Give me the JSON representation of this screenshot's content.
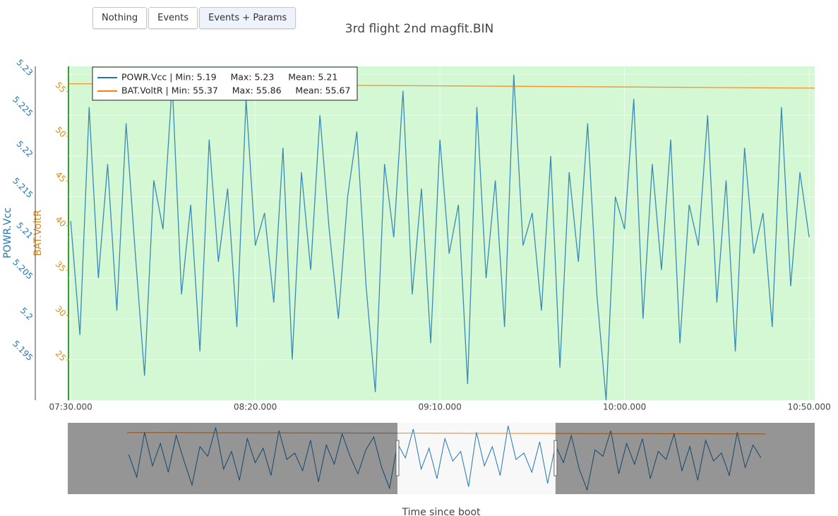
{
  "buttons": [
    "Nothing",
    "Events",
    "Events + Params"
  ],
  "chart_data": {
    "type": "line",
    "title": "3rd flight 2nd magfit.BIN",
    "x_label": "Time since boot",
    "y_label": "POWR.Vcc",
    "y2_label": "BAT.VoltR",
    "xlim": [
      449.4,
      651.5
    ],
    "xticks": [
      {
        "value": 450,
        "label": "07:30.000"
      },
      {
        "value": 500,
        "label": "08:20.000"
      },
      {
        "value": 550,
        "label": "09:10.000"
      },
      {
        "value": 600,
        "label": "10:00.000"
      },
      {
        "value": 650,
        "label": "10:50.000"
      }
    ],
    "ylim": [
      5.19,
      5.231
    ],
    "yticks": [
      5.195,
      5.2,
      5.205,
      5.21,
      5.215,
      5.22,
      5.225,
      5.23
    ],
    "y2lim": [
      20.5,
      57.8
    ],
    "y2ticks": [
      25,
      30,
      35,
      40,
      45,
      50,
      55
    ],
    "grid": true,
    "background": "#d3f8d3",
    "legend": "top-left",
    "x": [
      450,
      452.5,
      455,
      457.5,
      460,
      462.5,
      465,
      467.5,
      470,
      472.5,
      475,
      477.5,
      480,
      482.5,
      485,
      487.5,
      490,
      492.5,
      495,
      497.5,
      500,
      502.5,
      505,
      507.5,
      510,
      512.5,
      515,
      517.5,
      520,
      522.5,
      525,
      527.5,
      530,
      532.5,
      535,
      537.5,
      540,
      542.5,
      545,
      547.5,
      550,
      552.5,
      555,
      557.5,
      560,
      562.5,
      565,
      567.5,
      570,
      572.5,
      575,
      577.5,
      580,
      582.5,
      585,
      587.5,
      590,
      592.5,
      595,
      597.5,
      600,
      602.5,
      605,
      607.5,
      610,
      612.5,
      615,
      617.5,
      620,
      622.5,
      625,
      627.5,
      630,
      632.5,
      635,
      637.5,
      640,
      642.5,
      645,
      647.5,
      650
    ],
    "series": [
      {
        "name": "POWR.Vcc | Min: 5.19     Max: 5.23     Mean: 5.21",
        "color": "#1f77b4",
        "values": [
          5.212,
          5.198,
          5.226,
          5.205,
          5.219,
          5.201,
          5.224,
          5.208,
          5.193,
          5.217,
          5.211,
          5.229,
          5.203,
          5.214,
          5.196,
          5.222,
          5.207,
          5.216,
          5.199,
          5.227,
          5.209,
          5.213,
          5.202,
          5.221,
          5.195,
          5.218,
          5.206,
          5.225,
          5.211,
          5.2,
          5.215,
          5.223,
          5.204,
          5.191,
          5.219,
          5.21,
          5.228,
          5.203,
          5.216,
          5.197,
          5.222,
          5.208,
          5.214,
          5.192,
          5.226,
          5.205,
          5.217,
          5.199,
          5.23,
          5.209,
          5.213,
          5.201,
          5.22,
          5.194,
          5.218,
          5.207,
          5.224,
          5.203,
          5.19,
          5.215,
          5.211,
          5.227,
          5.2,
          5.219,
          5.206,
          5.222,
          5.197,
          5.214,
          5.209,
          5.225,
          5.202,
          5.217,
          5.196,
          5.221,
          5.208,
          5.213,
          5.199,
          5.226,
          5.204,
          5.218,
          5.21
        ]
      },
      {
        "name": "BAT.VoltR | Min: 55.37     Max: 55.86     Mean: 55.67",
        "color": "#ff7f0e",
        "axis": "y2",
        "x": [
          449.5,
          500,
          550,
          600,
          651.5
        ],
        "values": [
          55.86,
          55.74,
          55.62,
          55.5,
          55.37
        ]
      }
    ],
    "rangeslider": {
      "xlim": [
        430.7,
        667
      ],
      "range": [
        535,
        585
      ]
    }
  }
}
